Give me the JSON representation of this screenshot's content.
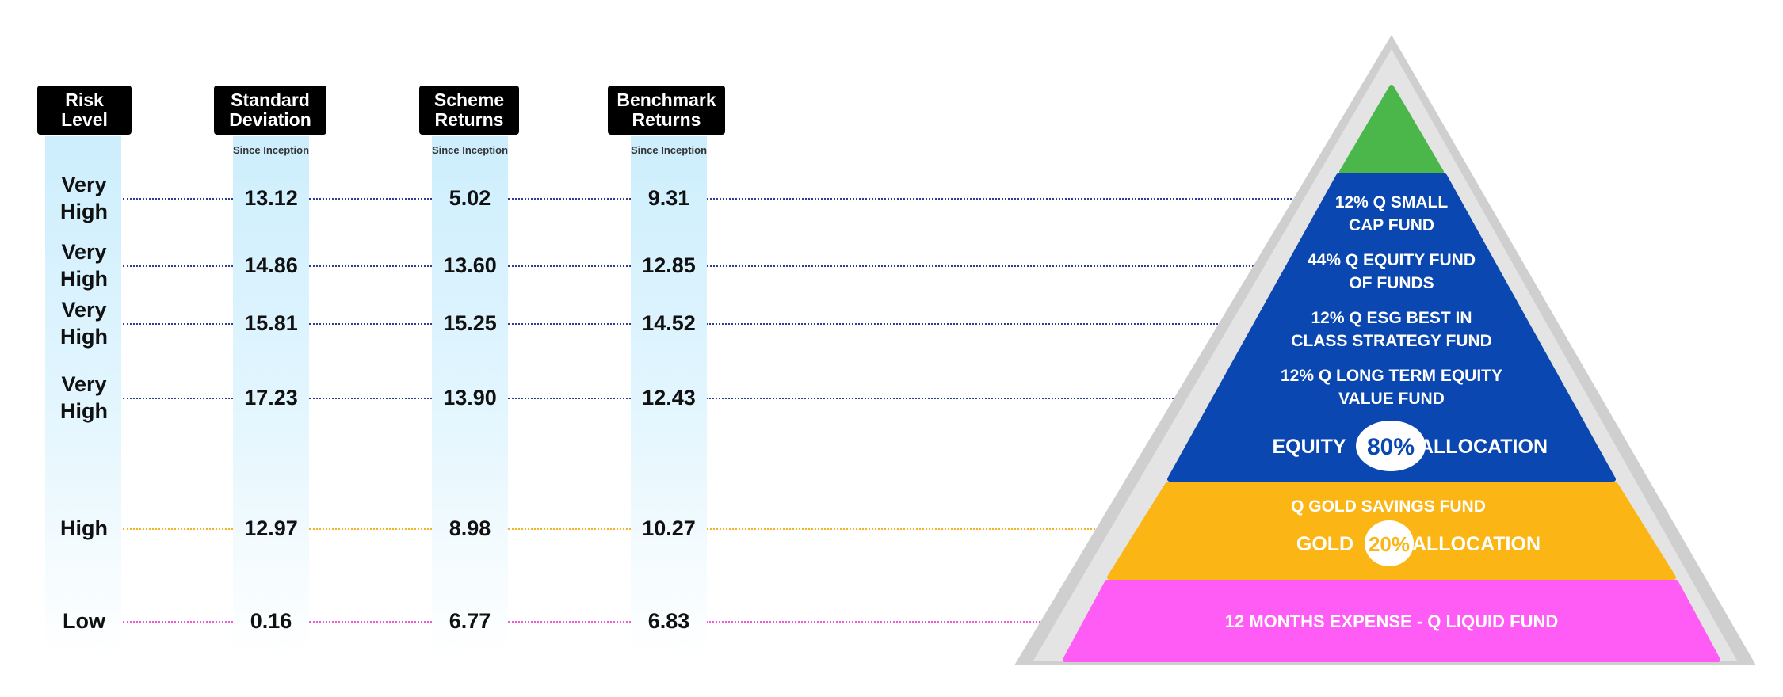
{
  "headers": {
    "risk_level": [
      "Risk",
      "Level"
    ],
    "std_dev": [
      "Standard",
      "Deviation"
    ],
    "scheme": [
      "Scheme",
      "Returns"
    ],
    "benchmark": [
      "Benchmark",
      "Returns"
    ],
    "since_inception": "Since Inception"
  },
  "rows": [
    {
      "risk": [
        "Very",
        "High"
      ],
      "std": "13.12",
      "scheme": "5.02",
      "benchmark": "9.31",
      "line_color": "#2c3e8f"
    },
    {
      "risk": [
        "Very",
        "High"
      ],
      "std": "14.86",
      "scheme": "13.60",
      "benchmark": "12.85",
      "line_color": "#2c3e8f"
    },
    {
      "risk": [
        "Very",
        "High"
      ],
      "std": "15.81",
      "scheme": "15.25",
      "benchmark": "14.52",
      "line_color": "#2c3e8f"
    },
    {
      "risk": [
        "Very",
        "High"
      ],
      "std": "17.23",
      "scheme": "13.90",
      "benchmark": "12.43",
      "line_color": "#2c3e8f"
    },
    {
      "risk": [
        "High"
      ],
      "std": "12.97",
      "scheme": "8.98",
      "benchmark": "10.27",
      "line_color": "#f2b320"
    },
    {
      "risk": [
        "Low"
      ],
      "std": "0.16",
      "scheme": "6.77",
      "benchmark": "6.83",
      "line_color": "#f05ad8"
    }
  ],
  "pyramid": {
    "colors": {
      "frame": "#cfcfcf",
      "top": "#4bb74a",
      "equity": "#0a47b0",
      "gold": "#fbb616",
      "liquid": "#ff5bf5",
      "white": "#ffffff"
    },
    "equity_funds": [
      [
        "12% Q SMALL",
        "CAP FUND"
      ],
      [
        "44% Q EQUITY FUND",
        "OF FUNDS"
      ],
      [
        "12% Q ESG BEST IN",
        "CLASS STRATEGY FUND"
      ],
      [
        "12% Q LONG TERM EQUITY",
        "VALUE FUND"
      ]
    ],
    "equity_label": "EQUITY",
    "equity_pct": "80%",
    "allocation_label": "ALLOCATION",
    "gold_fund": "Q GOLD SAVINGS FUND",
    "gold_label": "GOLD",
    "gold_pct": "20%",
    "liquid_fund": "12 MONTHS EXPENSE - Q LIQUID FUND"
  }
}
